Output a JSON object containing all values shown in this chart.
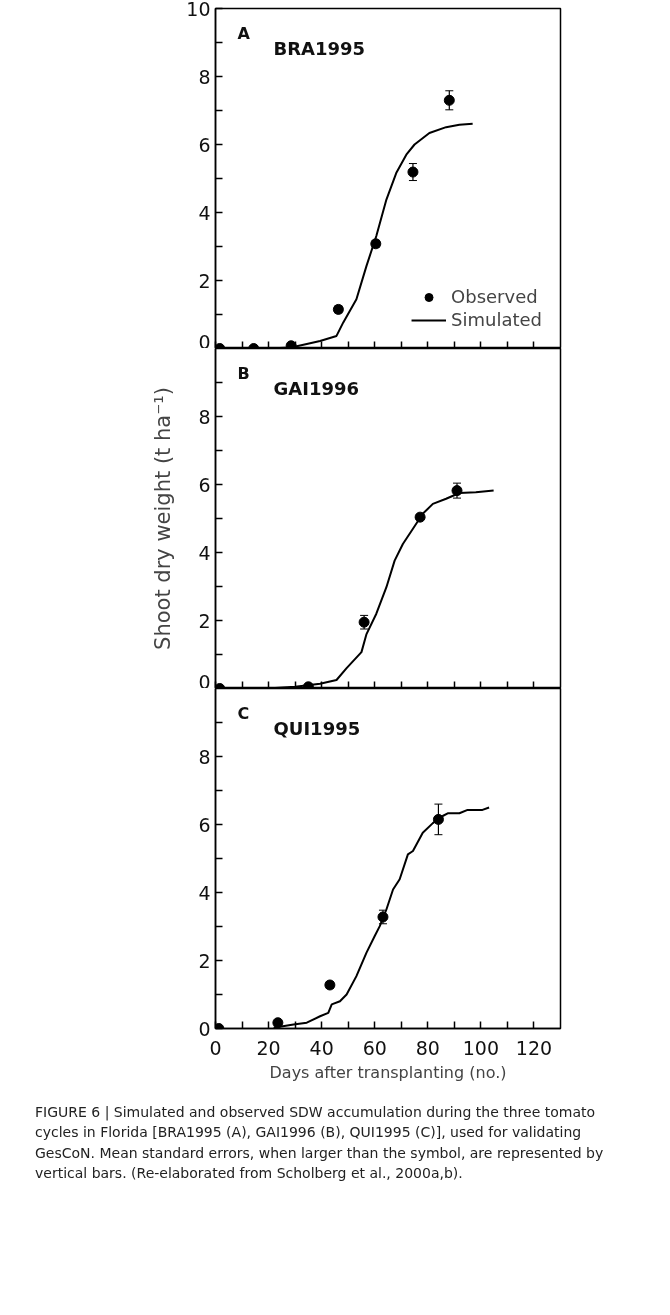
{
  "chart_data": [
    {
      "type": "scatter",
      "title": "BRA1995",
      "annotations": [
        "A"
      ],
      "xlim": [
        0,
        130
      ],
      "ylim": [
        0,
        10
      ],
      "xticks": [
        0,
        {
          "value": 10,
          "label": null
        },
        20,
        {
          "value": 30,
          "label": null
        },
        40,
        {
          "value": 50,
          "label": null
        },
        60,
        {
          "value": 70,
          "label": null
        },
        80,
        {
          "value": 90,
          "label": null
        },
        100,
        {
          "value": 110,
          "label": null
        },
        120
      ],
      "yticks": [
        0,
        {
          "value": 1,
          "label": null
        },
        2,
        {
          "value": 3,
          "label": null
        },
        4,
        {
          "value": 5,
          "label": null
        },
        6,
        {
          "value": 7,
          "label": null
        },
        8,
        {
          "value": 9,
          "label": null
        },
        10
      ],
      "tick_labels": "y",
      "grid": false,
      "legend": "bottom right",
      "series": [
        {
          "name": "Observed",
          "marker": "circle",
          "color": "#000000",
          "x": [
            1.6,
            14.4,
            28.5,
            46.3,
            60.4,
            74.4,
            88.1
          ],
          "values": [
            0,
            0,
            0.08,
            1.15,
            3.08,
            5.19,
            7.3
          ],
          "errors": [
            null,
            null,
            null,
            0.1,
            0.1,
            0.25,
            0.28
          ]
        },
        {
          "name": "Simulated",
          "type": "line",
          "line_style": "solid",
          "color": "#000000",
          "x": [
            0,
            20,
            28.5,
            34.4,
            39.4,
            45.6,
            48.1,
            53.1,
            56.9,
            60.6,
            64.4,
            68.1,
            71.9,
            75,
            80.6,
            86.9,
            91.9,
            96.9
          ],
          "values": [
            0,
            0,
            0.03,
            0.13,
            0.22,
            0.37,
            0.76,
            1.45,
            2.43,
            3.31,
            4.38,
            5.16,
            5.7,
            6.0,
            6.34,
            6.51,
            6.58,
            6.61
          ]
        }
      ]
    },
    {
      "type": "scatter",
      "title": "GAI1996",
      "annotations": [
        "B"
      ],
      "ylabel": "Shoot dry weight (t ha⁻¹)",
      "xlim": [
        0,
        130
      ],
      "ylim": [
        0,
        10
      ],
      "xticks": [
        0,
        {
          "value": 10,
          "label": null
        },
        20,
        {
          "value": 30,
          "label": null
        },
        40,
        {
          "value": 50,
          "label": null
        },
        60,
        {
          "value": 70,
          "label": null
        },
        80,
        {
          "value": 90,
          "label": null
        },
        100,
        {
          "value": 110,
          "label": null
        },
        120
      ],
      "yticks": [
        0,
        {
          "value": 1,
          "label": null
        },
        2,
        {
          "value": 3,
          "label": null
        },
        4,
        {
          "value": 5,
          "label": null
        },
        6,
        {
          "value": 7,
          "label": null
        },
        8,
        {
          "value": 9,
          "label": null
        }
      ],
      "tick_labels": "y",
      "grid": false,
      "series": [
        {
          "marker": "circle",
          "color": "#000000",
          "x": [
            1.6,
            35,
            56,
            77.1,
            91
          ],
          "values": [
            0,
            0.05,
            1.95,
            5.04,
            5.82
          ],
          "errors": [
            null,
            null,
            0.2,
            null,
            0.22
          ]
        },
        {
          "type": "line",
          "line_style": "solid",
          "color": "#000000",
          "x": [
            19.4,
            30,
            39.4,
            45.6,
            49.4,
            55,
            56.9,
            60.6,
            64.4,
            67.5,
            70.6,
            74.4,
            78.1,
            81.9,
            86.9,
            91.9,
            98.1,
            104.8
          ],
          "values": [
            0,
            0.05,
            0.14,
            0.25,
            0.6,
            1.07,
            1.6,
            2.2,
            2.98,
            3.76,
            4.25,
            4.7,
            5.14,
            5.43,
            5.58,
            5.75,
            5.77,
            5.82
          ]
        }
      ]
    },
    {
      "type": "scatter",
      "title": "QUI1995",
      "annotations": [
        "C",
        "FIGURE 6 | Simulated and observed SDW accumulation during the three tomato cycles in Florida [BRA1995 (A), GAI1996 (B), QUI1995 (C)], used for validating GesCoN. Mean standard errors, when larger than the symbol, are represented by vertical bars. (Re-elaborated from Scholberg et al., 2000a,b)."
      ],
      "xlabel": "Days after transplanting (no.)",
      "xlim": [
        0,
        130
      ],
      "ylim": [
        0,
        10
      ],
      "xticks": [
        0,
        {
          "value": 10,
          "label": null
        },
        20,
        {
          "value": 30,
          "label": null
        },
        40,
        {
          "value": 50,
          "label": null
        },
        60,
        {
          "value": 70,
          "label": null
        },
        80,
        {
          "value": 90,
          "label": null
        },
        100,
        {
          "value": 110,
          "label": null
        },
        120
      ],
      "yticks": [
        0,
        {
          "value": 1,
          "label": null
        },
        2,
        {
          "value": 3,
          "label": null
        },
        4,
        {
          "value": 5,
          "label": null
        },
        6,
        {
          "value": 7,
          "label": null
        },
        8,
        {
          "value": 9,
          "label": null
        }
      ],
      "grid": false,
      "series": [
        {
          "marker": "circle",
          "color": "#000000",
          "x": [
            1.25,
            23.5,
            43.1,
            63.1,
            84
          ],
          "values": [
            0,
            0.17,
            1.28,
            3.28,
            6.15
          ],
          "errors": [
            null,
            null,
            0.1,
            0.2,
            0.45
          ]
        },
        {
          "type": "line",
          "line_style": "solid",
          "color": "#000000",
          "x": [
            21.9,
            29.4,
            34.4,
            39.4,
            42.5,
            43.8,
            46.9,
            49.4,
            53.1,
            56.9,
            60,
            61.9,
            64.4,
            66.9,
            69.4,
            72.5,
            74.4,
            78.1,
            81.9,
            85.6,
            87.5,
            91.9,
            95,
            100.6,
            103.1
          ],
          "values": [
            0.02,
            0.12,
            0.17,
            0.36,
            0.46,
            0.71,
            0.8,
            1.0,
            1.54,
            2.23,
            2.72,
            3.01,
            3.5,
            4.09,
            4.39,
            5.12,
            5.22,
            5.76,
            6.04,
            6.25,
            6.33,
            6.33,
            6.43,
            6.43,
            6.5
          ]
        }
      ]
    }
  ]
}
